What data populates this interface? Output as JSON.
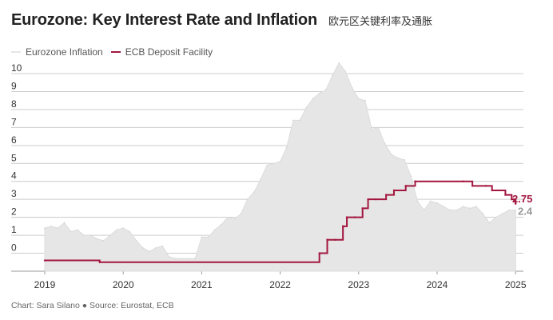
{
  "header": {
    "title": "Eurozone: Key Interest Rate and Inflation",
    "subtitle": "欧元区关键利率及通胀"
  },
  "footer": {
    "credit": "Chart: Sara Silano ● Source: Eurostat, ECB"
  },
  "colors": {
    "inflation": "#e6e6e6",
    "inflation_label": "#999999",
    "deposit": "#a3163f",
    "grid": "#cccccc",
    "axis_text": "#333333"
  },
  "chart_data": {
    "type": "area",
    "title": "Eurozone: Key Interest Rate and Inflation",
    "ylim": [
      -1,
      10
    ],
    "xlim": [
      2019,
      2025.1
    ],
    "y_ticks": [
      0,
      1,
      2,
      3,
      4,
      5,
      6,
      7,
      8,
      9,
      10
    ],
    "x_ticks": [
      2019,
      2020,
      2021,
      2022,
      2023,
      2024,
      2025
    ],
    "end_labels": {
      "deposit": "2.75",
      "inflation": "2.4"
    },
    "series": [
      {
        "name": "Eurozone Inflation",
        "kind": "area",
        "x": [
          2019.0,
          2019.083,
          2019.167,
          2019.25,
          2019.333,
          2019.417,
          2019.5,
          2019.583,
          2019.667,
          2019.75,
          2019.833,
          2019.917,
          2020.0,
          2020.083,
          2020.167,
          2020.25,
          2020.333,
          2020.417,
          2020.5,
          2020.583,
          2020.667,
          2020.75,
          2020.833,
          2020.917,
          2021.0,
          2021.083,
          2021.167,
          2021.25,
          2021.333,
          2021.417,
          2021.5,
          2021.583,
          2021.667,
          2021.75,
          2021.833,
          2021.917,
          2022.0,
          2022.083,
          2022.167,
          2022.25,
          2022.333,
          2022.417,
          2022.5,
          2022.583,
          2022.667,
          2022.75,
          2022.833,
          2022.917,
          2023.0,
          2023.083,
          2023.167,
          2023.25,
          2023.333,
          2023.417,
          2023.5,
          2023.583,
          2023.667,
          2023.75,
          2023.833,
          2023.917,
          2024.0,
          2024.083,
          2024.167,
          2024.25,
          2024.333,
          2024.417,
          2024.5,
          2024.583,
          2024.667,
          2024.75,
          2024.833,
          2024.917,
          2025.0
        ],
        "values": [
          1.4,
          1.5,
          1.4,
          1.7,
          1.2,
          1.3,
          1.0,
          1.0,
          0.8,
          0.7,
          1.0,
          1.3,
          1.4,
          1.2,
          0.7,
          0.3,
          0.1,
          0.3,
          0.4,
          -0.2,
          -0.3,
          -0.3,
          -0.3,
          -0.3,
          0.9,
          0.9,
          1.3,
          1.6,
          2.0,
          1.9,
          2.2,
          3.0,
          3.4,
          4.1,
          4.9,
          5.0,
          5.1,
          5.9,
          7.4,
          7.4,
          8.1,
          8.6,
          8.9,
          9.1,
          9.9,
          10.6,
          10.1,
          9.2,
          8.6,
          8.5,
          6.9,
          7.0,
          6.1,
          5.5,
          5.3,
          5.2,
          4.3,
          2.9,
          2.4,
          2.9,
          2.8,
          2.6,
          2.4,
          2.4,
          2.6,
          2.5,
          2.6,
          2.2,
          1.7,
          2.0,
          2.2,
          2.4,
          2.4
        ]
      },
      {
        "name": "ECB Deposit Facility",
        "kind": "step",
        "x": [
          2019.0,
          2019.7,
          2022.5,
          2022.6,
          2022.7,
          2022.8,
          2022.85,
          2022.95,
          2023.05,
          2023.12,
          2023.22,
          2023.35,
          2023.45,
          2023.6,
          2023.72,
          2024.33,
          2024.45,
          2024.62,
          2024.7,
          2024.87,
          2024.95,
          2025.0
        ],
        "values": [
          -0.4,
          -0.5,
          0.0,
          0.75,
          0.75,
          1.5,
          2.0,
          2.0,
          2.5,
          3.0,
          3.0,
          3.25,
          3.5,
          3.75,
          4.0,
          4.0,
          3.75,
          3.75,
          3.5,
          3.25,
          3.0,
          2.75
        ]
      }
    ]
  }
}
